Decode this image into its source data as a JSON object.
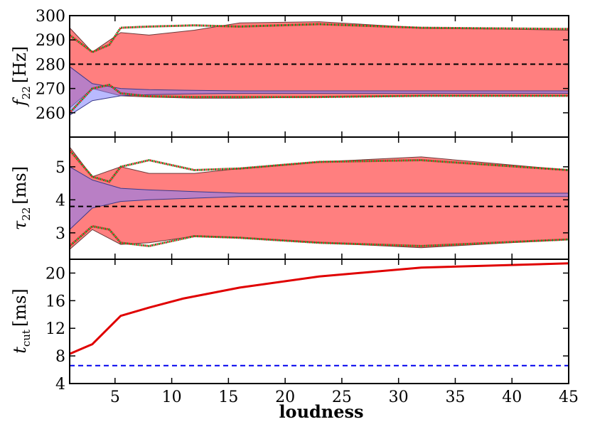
{
  "chart_data": [
    {
      "type": "area",
      "ylabel_main": "f",
      "ylabel_sub": "22",
      "ylabel_unit": "[Hz]",
      "xlim": [
        1,
        45
      ],
      "ylim": [
        250,
        300
      ],
      "yticks": [
        260,
        270,
        280,
        290,
        300
      ],
      "grid": false,
      "reference_value": 280,
      "series": [
        {
          "style": "red-band",
          "x": [
            1,
            3,
            5.5,
            8,
            12,
            16,
            23,
            32,
            45
          ],
          "upper": [
            295,
            285,
            293,
            292,
            294,
            297,
            297.5,
            295,
            294
          ],
          "lower": [
            262,
            270,
            267,
            266.5,
            266,
            266,
            266.5,
            267,
            267
          ]
        },
        {
          "style": "blue-band",
          "x": [
            1,
            3,
            5.5,
            8,
            12,
            16,
            23,
            32,
            45
          ],
          "upper": [
            279,
            272,
            270,
            269.5,
            269.2,
            269,
            269,
            269,
            269
          ],
          "lower": [
            259,
            265,
            267,
            267.5,
            267.8,
            268,
            268,
            268,
            268
          ]
        },
        {
          "style": "dotted-upper",
          "x": [
            1,
            3,
            4.5,
            5.5,
            8,
            12,
            16,
            23,
            32,
            45
          ],
          "y": [
            292,
            285,
            288,
            295,
            295.5,
            296,
            295.5,
            296.5,
            295,
            294.5
          ]
        },
        {
          "style": "dotted-lower",
          "x": [
            1,
            3,
            4.5,
            5.5,
            8,
            12,
            16,
            23,
            32,
            45
          ],
          "y": [
            260,
            270,
            271.5,
            268,
            266.8,
            266.5,
            266.5,
            266.5,
            267,
            267
          ]
        }
      ]
    },
    {
      "type": "area",
      "ylabel_main": "τ",
      "ylabel_sub": "22",
      "ylabel_unit": "[ms]",
      "xlim": [
        1,
        45
      ],
      "ylim": [
        2.2,
        5.9
      ],
      "yticks": [
        3,
        4,
        5
      ],
      "grid": false,
      "reference_value": 3.8,
      "series": [
        {
          "style": "red-band",
          "x": [
            1,
            3,
            5.5,
            8,
            12,
            16,
            23,
            32,
            45
          ],
          "upper": [
            5.6,
            4.7,
            5.0,
            4.8,
            4.8,
            4.95,
            5.15,
            5.3,
            4.9
          ],
          "lower": [
            2.5,
            3.1,
            2.65,
            2.7,
            2.9,
            2.85,
            2.7,
            2.55,
            2.8
          ]
        },
        {
          "style": "blue-band",
          "x": [
            1,
            3,
            5.5,
            8,
            12,
            16,
            23,
            32,
            45
          ],
          "upper": [
            5.0,
            4.6,
            4.35,
            4.3,
            4.25,
            4.2,
            4.2,
            4.2,
            4.2
          ],
          "lower": [
            3.1,
            3.75,
            3.95,
            4.0,
            4.05,
            4.1,
            4.1,
            4.1,
            4.1
          ]
        },
        {
          "style": "dotted-upper",
          "x": [
            1,
            3,
            4.5,
            5.5,
            8,
            12,
            16,
            23,
            32,
            45
          ],
          "y": [
            5.5,
            4.7,
            4.55,
            5.0,
            5.2,
            4.9,
            4.95,
            5.15,
            5.2,
            4.9
          ]
        },
        {
          "style": "dotted-lower",
          "x": [
            1,
            3,
            4.5,
            5.5,
            8,
            12,
            16,
            23,
            32,
            45
          ],
          "y": [
            2.6,
            3.2,
            3.1,
            2.7,
            2.6,
            2.9,
            2.85,
            2.7,
            2.6,
            2.8
          ]
        }
      ]
    },
    {
      "type": "line",
      "ylabel_main": "t",
      "ylabel_sub": "cut",
      "ylabel_unit": "[ms]",
      "xlabel": "loudness",
      "xlim": [
        1,
        45
      ],
      "xticks": [
        5,
        10,
        15,
        20,
        25,
        30,
        35,
        40,
        45
      ],
      "ylim": [
        4,
        22
      ],
      "yticks": [
        4,
        8,
        12,
        16,
        20
      ],
      "grid": false,
      "reference_value": 6.6,
      "series": [
        {
          "style": "red-solid",
          "x": [
            1,
            3,
            5.5,
            8,
            11,
            16,
            23,
            32,
            45
          ],
          "y": [
            8.3,
            9.7,
            13.8,
            15.0,
            16.3,
            17.9,
            19.5,
            20.8,
            21.4
          ]
        }
      ]
    }
  ]
}
